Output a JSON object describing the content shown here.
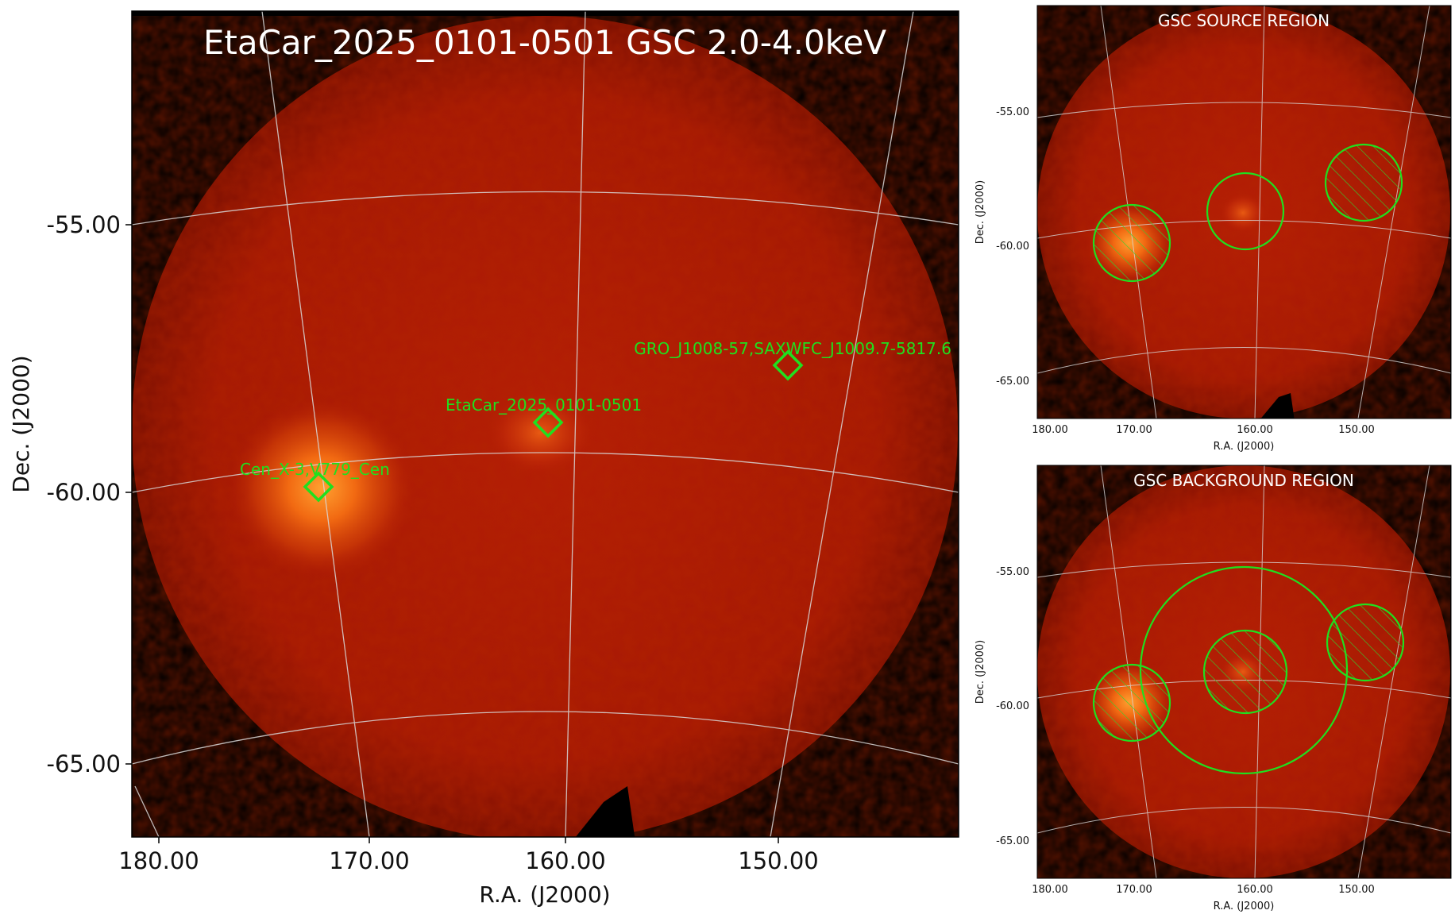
{
  "main_panel": {
    "title": "EtaCar_2025_0101-0501 GSC 2.0-4.0keV",
    "xlabel": "R.A. (J2000)",
    "ylabel": "Dec. (J2000)",
    "x_ticks": [
      "180.00",
      "170.00",
      "160.00",
      "150.00"
    ],
    "y_ticks": [
      "-55.00",
      "-60.00",
      "-65.00"
    ],
    "sources": [
      {
        "label": "GRO_J1008-57,SAXWFC_J1009.7-5817.6"
      },
      {
        "label": "EtaCar_2025_0101-0501"
      },
      {
        "label": "Cen_X-3,V779_Cen"
      }
    ]
  },
  "source_panel": {
    "title": "GSC SOURCE REGION",
    "xlabel": "R.A. (J2000)",
    "ylabel": "Dec. (J2000)",
    "x_ticks": [
      "180.00",
      "170.00",
      "160.00",
      "150.00"
    ],
    "y_ticks": [
      "-55.00",
      "-60.00",
      "-65.00"
    ]
  },
  "background_panel": {
    "title": "GSC BACKGROUND REGION",
    "xlabel": "R.A. (J2000)",
    "ylabel": "Dec. (J2000)",
    "x_ticks": [
      "180.00",
      "170.00",
      "160.00",
      "150.00"
    ],
    "y_ticks": [
      "-55.00",
      "-60.00",
      "-65.00"
    ]
  },
  "colors": {
    "region_green": "#1fe01f",
    "map_red": "#b01a05",
    "hot_orange": "#ff8a1a"
  }
}
